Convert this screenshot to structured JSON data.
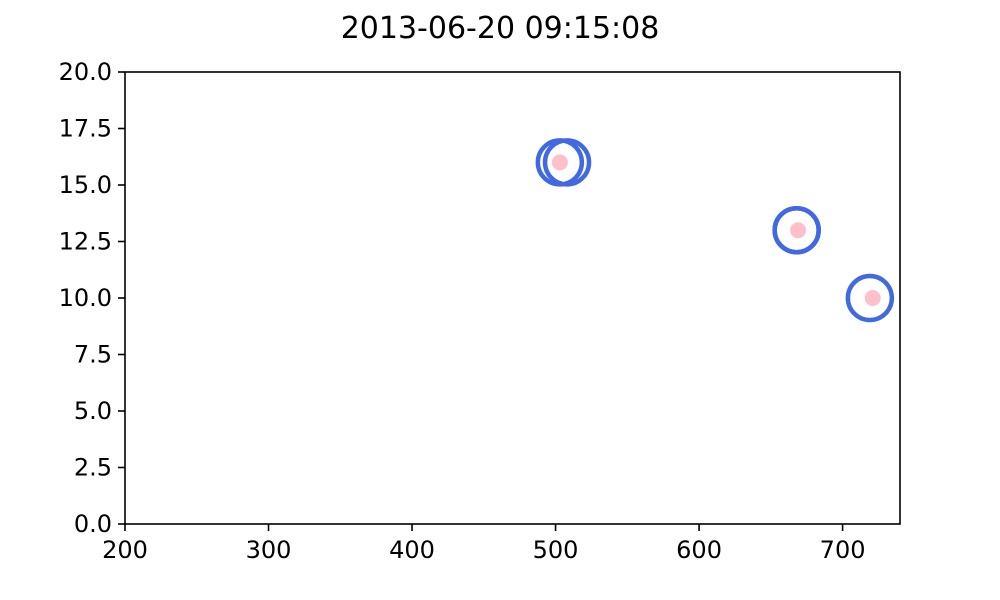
{
  "chart_data": {
    "type": "scatter",
    "title": "2013-06-20 09:15:08",
    "xlabel": "",
    "ylabel": "",
    "xlim": [
      200,
      740
    ],
    "ylim": [
      0,
      20
    ],
    "xticks": [
      200,
      300,
      400,
      500,
      600,
      700
    ],
    "xtick_labels": [
      "200",
      "300",
      "400",
      "500",
      "600",
      "700"
    ],
    "yticks": [
      0,
      2.5,
      5,
      7.5,
      10,
      12.5,
      15,
      17.5,
      20
    ],
    "ytick_labels": [
      "0.0",
      "2.5",
      "5.0",
      "7.5",
      "10.0",
      "12.5",
      "15.0",
      "17.5",
      "20.0"
    ],
    "grid": false,
    "series": [
      {
        "name": "rings",
        "marker": "open-circle",
        "color": "#4169e1",
        "points": [
          {
            "x": 503,
            "y": 16.0
          },
          {
            "x": 508,
            "y": 16.0
          },
          {
            "x": 668,
            "y": 13.0
          },
          {
            "x": 668,
            "y": 13.0
          },
          {
            "x": 719,
            "y": 10.0
          }
        ]
      },
      {
        "name": "dots",
        "marker": "filled-circle",
        "color": "#ffc0cb",
        "points": [
          {
            "x": 503,
            "y": 16.0
          },
          {
            "x": 669,
            "y": 13.0
          },
          {
            "x": 721,
            "y": 10.0
          }
        ]
      }
    ]
  }
}
